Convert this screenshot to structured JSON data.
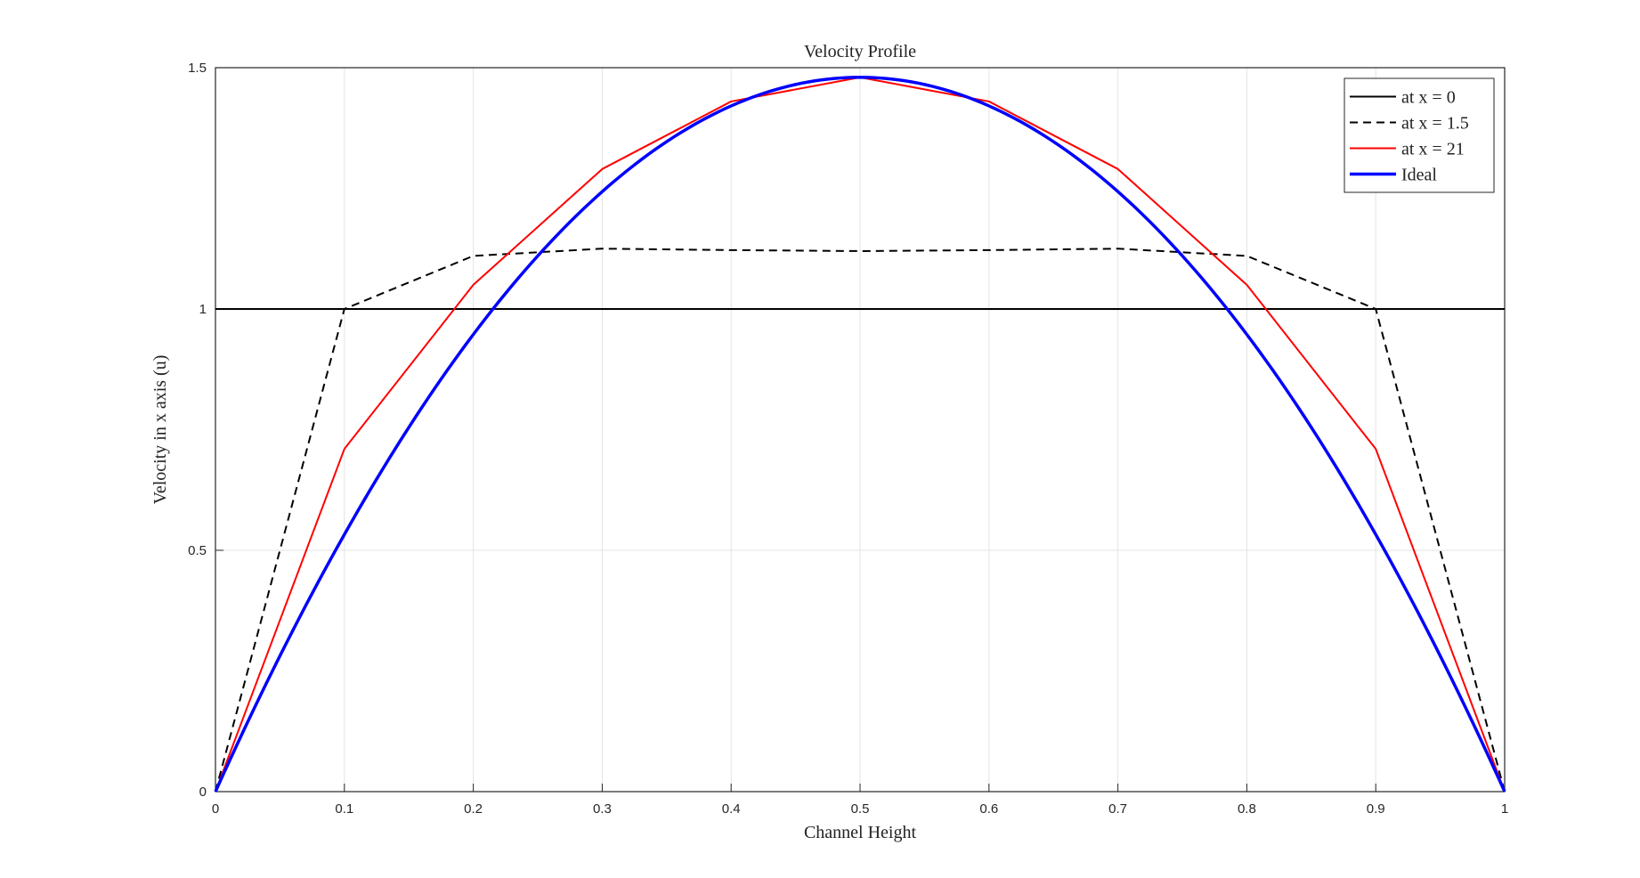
{
  "chart_data": {
    "type": "line",
    "title": "Velocity Profile",
    "xlabel": "Channel Height",
    "ylabel": "Velocity in x axis (u)",
    "xlim": [
      0,
      1
    ],
    "ylim": [
      0,
      1.5
    ],
    "grid": true,
    "legend_position": "top-right",
    "x_ticks": [
      0,
      0.1,
      0.2,
      0.3,
      0.4,
      0.5,
      0.6,
      0.7,
      0.8,
      0.9,
      1
    ],
    "x_tick_labels": [
      "0",
      "0.1",
      "0.2",
      "0.3",
      "0.4",
      "0.5",
      "0.6",
      "0.7",
      "0.8",
      "0.9",
      "1"
    ],
    "y_ticks": [
      0,
      0.5,
      1,
      1.5
    ],
    "y_tick_labels": [
      "0",
      "0.5",
      "1",
      "1.5"
    ],
    "series": [
      {
        "name": "at x = 0",
        "color": "#000000",
        "style": "solid",
        "width": 2,
        "x": [
          0,
          1
        ],
        "y": [
          1,
          1
        ]
      },
      {
        "name": "at x = 1.5",
        "color": "#000000",
        "style": "dashed",
        "width": 2,
        "x": [
          0,
          0.1,
          0.2,
          0.3,
          0.4,
          0.5,
          0.6,
          0.7,
          0.8,
          0.9,
          1
        ],
        "y": [
          0,
          1.0,
          1.11,
          1.125,
          1.122,
          1.12,
          1.122,
          1.125,
          1.11,
          1.0,
          0
        ]
      },
      {
        "name": "at x = 21",
        "color": "#ff0000",
        "style": "solid",
        "width": 2,
        "x": [
          0,
          0.1,
          0.2,
          0.3,
          0.4,
          0.5,
          0.6,
          0.7,
          0.8,
          0.9,
          1
        ],
        "y": [
          0,
          0.71,
          1.05,
          1.29,
          1.43,
          1.48,
          1.43,
          1.29,
          1.05,
          0.71,
          0
        ]
      },
      {
        "name": "Ideal",
        "color": "#0000ff",
        "style": "solid",
        "width": 3.5,
        "function": "parabola",
        "peak": 1.48,
        "x": [
          0,
          0.1,
          0.2,
          0.3,
          0.4,
          0.5,
          0.6,
          0.7,
          0.8,
          0.9,
          1
        ],
        "y": [
          0,
          0.533,
          0.947,
          1.243,
          1.421,
          1.48,
          1.421,
          1.243,
          0.947,
          0.533,
          0
        ]
      }
    ]
  }
}
